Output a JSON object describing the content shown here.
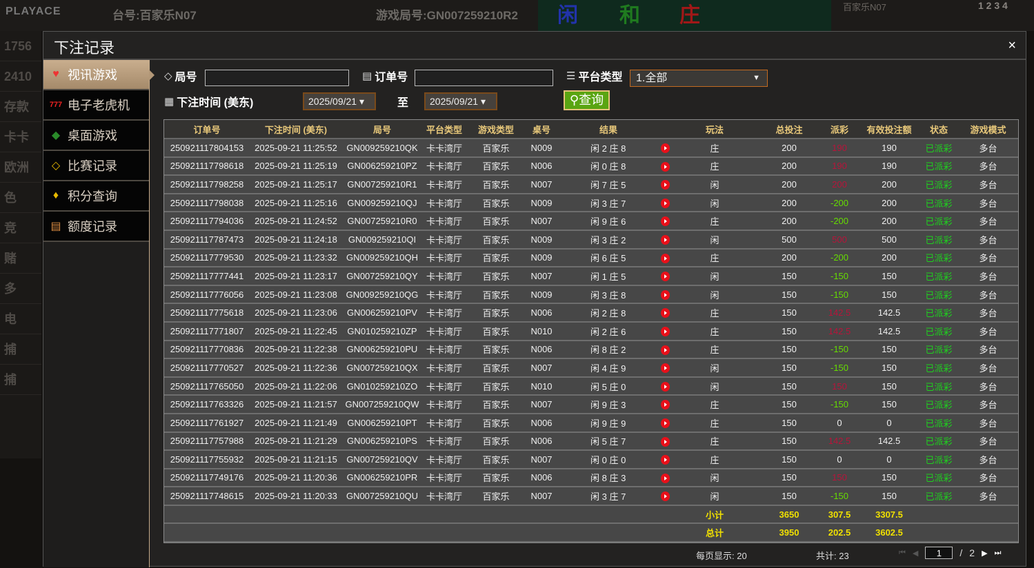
{
  "background": {
    "logo": "PLAYACE",
    "table": "台号:百家乐N07",
    "round": "游戏局号:GN007259210R2",
    "bets": [
      "闲",
      "和",
      "庄"
    ],
    "right_title": "百家乐N07",
    "nums": "1 2 3 4",
    "left_items": [
      "1756",
      "2410",
      "存款",
      "卡卡",
      "欧洲",
      "色",
      "竞",
      "赌",
      "多",
      "电",
      "捕",
      "捕"
    ]
  },
  "modal": {
    "title": "下注记录",
    "close": "×"
  },
  "sidebar": {
    "items": [
      {
        "label": "视讯游戏",
        "icon": "cards-icon",
        "active": true
      },
      {
        "label": "电子老虎机",
        "icon": "slot-777-icon"
      },
      {
        "label": "桌面游戏",
        "icon": "dice-chip-icon"
      },
      {
        "label": "比赛记录",
        "icon": "ticket-icon"
      },
      {
        "label": "积分查询",
        "icon": "diamond-icon"
      },
      {
        "label": "额度记录",
        "icon": "document-icon"
      }
    ]
  },
  "filters": {
    "round_label": "局号",
    "round_value": "",
    "order_label": "订单号",
    "order_value": "",
    "platform_label": "平台类型",
    "platform_value": "1.全部",
    "time_label": "下注时间 (美东)",
    "date_from": "2025/09/21",
    "to_label": "至",
    "date_to": "2025/09/21",
    "query": "查询"
  },
  "table": {
    "headers": [
      "订单号",
      "下注时间 (美东)",
      "局号",
      "平台类型",
      "游戏类型",
      "桌号",
      "结果",
      "",
      "玩法",
      "总投注",
      "派彩",
      "有效投注额",
      "状态",
      "游戏模式"
    ],
    "rows": [
      [
        "250921117804153",
        "2025-09-21 11:25:52",
        "GN009259210QK",
        "卡卡湾厅",
        "百家乐",
        "N009",
        "闲 2 庄 8",
        "庄",
        "200",
        "190",
        "190",
        "已派彩",
        "多台"
      ],
      [
        "250921117798618",
        "2025-09-21 11:25:19",
        "GN006259210PZ",
        "卡卡湾厅",
        "百家乐",
        "N006",
        "闲 0 庄 8",
        "庄",
        "200",
        "190",
        "190",
        "已派彩",
        "多台"
      ],
      [
        "250921117798258",
        "2025-09-21 11:25:17",
        "GN007259210R1",
        "卡卡湾厅",
        "百家乐",
        "N007",
        "闲 7 庄 5",
        "闲",
        "200",
        "200",
        "200",
        "已派彩",
        "多台"
      ],
      [
        "250921117798038",
        "2025-09-21 11:25:16",
        "GN009259210QJ",
        "卡卡湾厅",
        "百家乐",
        "N009",
        "闲 3 庄 7",
        "闲",
        "200",
        "-200",
        "200",
        "已派彩",
        "多台"
      ],
      [
        "250921117794036",
        "2025-09-21 11:24:52",
        "GN007259210R0",
        "卡卡湾厅",
        "百家乐",
        "N007",
        "闲 9 庄 6",
        "庄",
        "200",
        "-200",
        "200",
        "已派彩",
        "多台"
      ],
      [
        "250921117787473",
        "2025-09-21 11:24:18",
        "GN009259210QI",
        "卡卡湾厅",
        "百家乐",
        "N009",
        "闲 3 庄 2",
        "闲",
        "500",
        "500",
        "500",
        "已派彩",
        "多台"
      ],
      [
        "250921117779530",
        "2025-09-21 11:23:32",
        "GN009259210QH",
        "卡卡湾厅",
        "百家乐",
        "N009",
        "闲 6 庄 5",
        "庄",
        "200",
        "-200",
        "200",
        "已派彩",
        "多台"
      ],
      [
        "250921117777441",
        "2025-09-21 11:23:17",
        "GN007259210QY",
        "卡卡湾厅",
        "百家乐",
        "N007",
        "闲 1 庄 5",
        "闲",
        "150",
        "-150",
        "150",
        "已派彩",
        "多台"
      ],
      [
        "250921117776056",
        "2025-09-21 11:23:08",
        "GN009259210QG",
        "卡卡湾厅",
        "百家乐",
        "N009",
        "闲 3 庄 8",
        "闲",
        "150",
        "-150",
        "150",
        "已派彩",
        "多台"
      ],
      [
        "250921117775618",
        "2025-09-21 11:23:06",
        "GN006259210PV",
        "卡卡湾厅",
        "百家乐",
        "N006",
        "闲 2 庄 8",
        "庄",
        "150",
        "142.5",
        "142.5",
        "已派彩",
        "多台"
      ],
      [
        "250921117771807",
        "2025-09-21 11:22:45",
        "GN010259210ZP",
        "卡卡湾厅",
        "百家乐",
        "N010",
        "闲 2 庄 6",
        "庄",
        "150",
        "142.5",
        "142.5",
        "已派彩",
        "多台"
      ],
      [
        "250921117770836",
        "2025-09-21 11:22:38",
        "GN006259210PU",
        "卡卡湾厅",
        "百家乐",
        "N006",
        "闲 8 庄 2",
        "庄",
        "150",
        "-150",
        "150",
        "已派彩",
        "多台"
      ],
      [
        "250921117770527",
        "2025-09-21 11:22:36",
        "GN007259210QX",
        "卡卡湾厅",
        "百家乐",
        "N007",
        "闲 4 庄 9",
        "闲",
        "150",
        "-150",
        "150",
        "已派彩",
        "多台"
      ],
      [
        "250921117765050",
        "2025-09-21 11:22:06",
        "GN010259210ZO",
        "卡卡湾厅",
        "百家乐",
        "N010",
        "闲 5 庄 0",
        "闲",
        "150",
        "150",
        "150",
        "已派彩",
        "多台"
      ],
      [
        "250921117763326",
        "2025-09-21 11:21:57",
        "GN007259210QW",
        "卡卡湾厅",
        "百家乐",
        "N007",
        "闲 9 庄 3",
        "庄",
        "150",
        "-150",
        "150",
        "已派彩",
        "多台"
      ],
      [
        "250921117761927",
        "2025-09-21 11:21:49",
        "GN006259210PT",
        "卡卡湾厅",
        "百家乐",
        "N006",
        "闲 9 庄 9",
        "庄",
        "150",
        "0",
        "0",
        "已派彩",
        "多台"
      ],
      [
        "250921117757988",
        "2025-09-21 11:21:29",
        "GN006259210PS",
        "卡卡湾厅",
        "百家乐",
        "N006",
        "闲 5 庄 7",
        "庄",
        "150",
        "142.5",
        "142.5",
        "已派彩",
        "多台"
      ],
      [
        "250921117755932",
        "2025-09-21 11:21:15",
        "GN007259210QV",
        "卡卡湾厅",
        "百家乐",
        "N007",
        "闲 0 庄 0",
        "庄",
        "150",
        "0",
        "0",
        "已派彩",
        "多台"
      ],
      [
        "250921117749176",
        "2025-09-21 11:20:36",
        "GN006259210PR",
        "卡卡湾厅",
        "百家乐",
        "N006",
        "闲 8 庄 3",
        "闲",
        "150",
        "150",
        "150",
        "已派彩",
        "多台"
      ],
      [
        "250921117748615",
        "2025-09-21 11:20:33",
        "GN007259210QU",
        "卡卡湾厅",
        "百家乐",
        "N007",
        "闲 3 庄 7",
        "闲",
        "150",
        "-150",
        "150",
        "已派彩",
        "多台"
      ]
    ],
    "subtotal": {
      "label": "小计",
      "total_bet": "3650",
      "payout": "307.5",
      "valid_bet": "3307.5"
    },
    "total": {
      "label": "总计",
      "total_bet": "3950",
      "payout": "202.5",
      "valid_bet": "3602.5"
    }
  },
  "footer": {
    "per_page": "每页显示: 20",
    "total": "共计: 23",
    "page": "1",
    "separator": "/",
    "pages": "2"
  },
  "colors": {
    "header_text": "#e8c87a",
    "payout_positive": "#b8143a",
    "payout_negative": "#66dd00",
    "status": "#1ed21e",
    "query_button": "#5aa512",
    "summary": "#f0e000"
  }
}
